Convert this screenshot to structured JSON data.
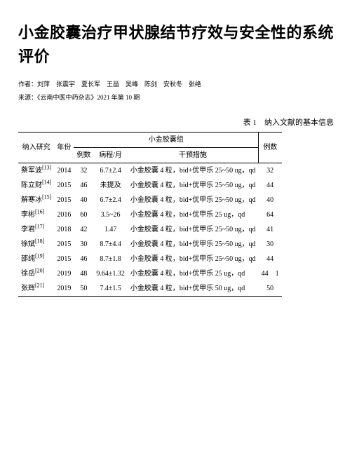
{
  "title": "小金胶囊治疗甲状腺结节疗效与安全性的系统评价",
  "meta": {
    "authors_line": "作者：刘萍　张震宇　夏长军　王甾　吴峰　陈剑　安秋冬　张绝",
    "source_line": "来源：《云南中医中药杂志》2021 年第 10 期"
  },
  "table_title": "表 1　纳入文献的基本信息",
  "columns": {
    "study": "纳入研究",
    "year": "年份",
    "group_xiaojin": "小金胶囊组",
    "n1": "例数",
    "duration": "病程/月",
    "intervention": "干预措施",
    "n2": "例数"
  },
  "rows": [
    {
      "author": "蔡军波",
      "ref": "[13]",
      "year": "2014",
      "n1": "32",
      "dur": "6.7±2.4",
      "interv": "小金胶囊 4 粒，bid+优甲乐 25~50 ug，qd",
      "n2": "32"
    },
    {
      "author": "陈立财",
      "ref": "[14]",
      "year": "2015",
      "n1": "46",
      "dur": "未提及",
      "interv": "小金胶囊 4 粒，bid+优甲乐 25~50 ug，qd",
      "n2": "44"
    },
    {
      "author": "解寒冰",
      "ref": "[15]",
      "year": "2015",
      "n1": "40",
      "dur": "6.7±2.4",
      "interv": "小金胶囊 4 粒，bid+优甲乐 25~50 ug，qd",
      "n2": "40"
    },
    {
      "author": "李彬",
      "ref": "[16]",
      "year": "2016",
      "n1": "60",
      "dur": "3.5~26",
      "interv": "小金胶囊 4 粒，bid+优甲乐 25 ug，qd",
      "n2": "64"
    },
    {
      "author": "李君",
      "ref": "[17]",
      "year": "2018",
      "n1": "42",
      "dur": "1.47",
      "interv": "小金胶囊 4 粒，bid+优甲乐 25~50 ug，qd",
      "n2": "41"
    },
    {
      "author": "徐斌",
      "ref": "[18]",
      "year": "2015",
      "n1": "30",
      "dur": "8.7±4.4",
      "interv": "小金胶囊 4 粒，bid+优甲乐 25~50 ug，qd",
      "n2": "30"
    },
    {
      "author": "邵纯",
      "ref": "[19]",
      "year": "2015",
      "n1": "46",
      "dur": "8.7±1.8",
      "interv": "小金胶囊 4 粒，bid+优甲乐 25~50 ug，qd",
      "n2": "44"
    },
    {
      "author": "徐岳",
      "ref": "[20]",
      "year": "2019",
      "n1": "48",
      "dur": "9.64±1.32",
      "interv": "小金胶囊 4 粒，bid+优甲乐 25 ug，qd",
      "n2": "44　1"
    },
    {
      "author": "张辉",
      "ref": "[21]",
      "year": "2019",
      "n1": "50",
      "dur": "7.4±1.5",
      "interv": "小金胶囊 4 粒，bid+优甲乐 50 ug，qd",
      "n2": "50"
    }
  ]
}
